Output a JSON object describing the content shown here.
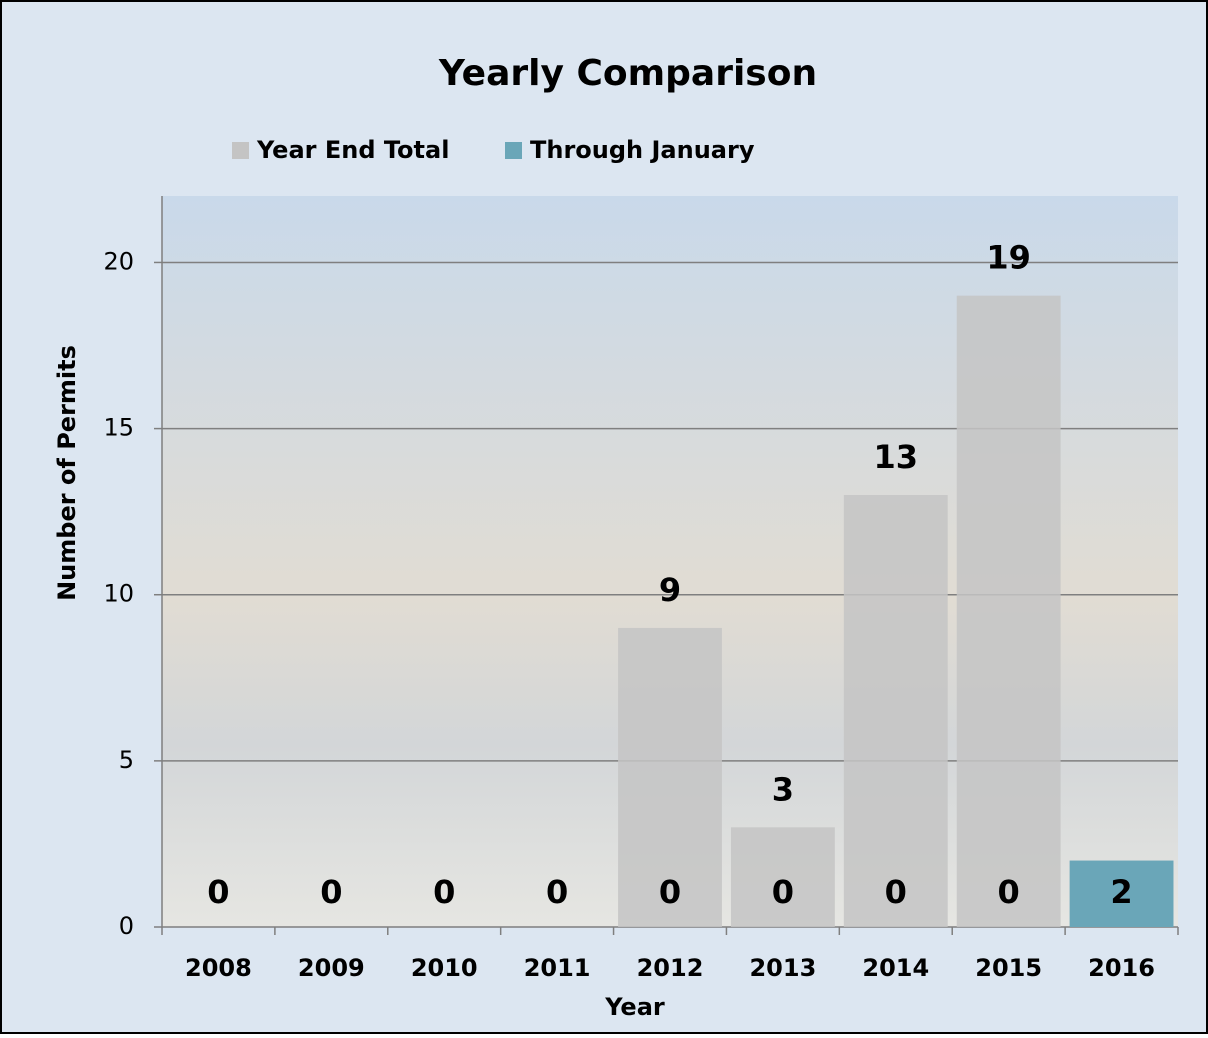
{
  "chart_data": {
    "type": "bar",
    "title": "Yearly Comparison",
    "x_label": "Year",
    "y_label": "Number of Permits",
    "categories": [
      "2008",
      "2009",
      "2010",
      "2011",
      "2012",
      "2013",
      "2014",
      "2015",
      "2016"
    ],
    "series": [
      {
        "name": "Year End Total",
        "color": "#c4c4c4",
        "values": [
          null,
          null,
          null,
          null,
          9,
          3,
          13,
          19,
          null
        ]
      },
      {
        "name": "Through January",
        "color": "#6aa6b8",
        "values": [
          0,
          0,
          0,
          0,
          0,
          0,
          0,
          0,
          2
        ]
      }
    ],
    "ylim": [
      0,
      22
    ],
    "yticks": [
      0,
      5,
      10,
      15,
      20
    ],
    "grid": true
  }
}
